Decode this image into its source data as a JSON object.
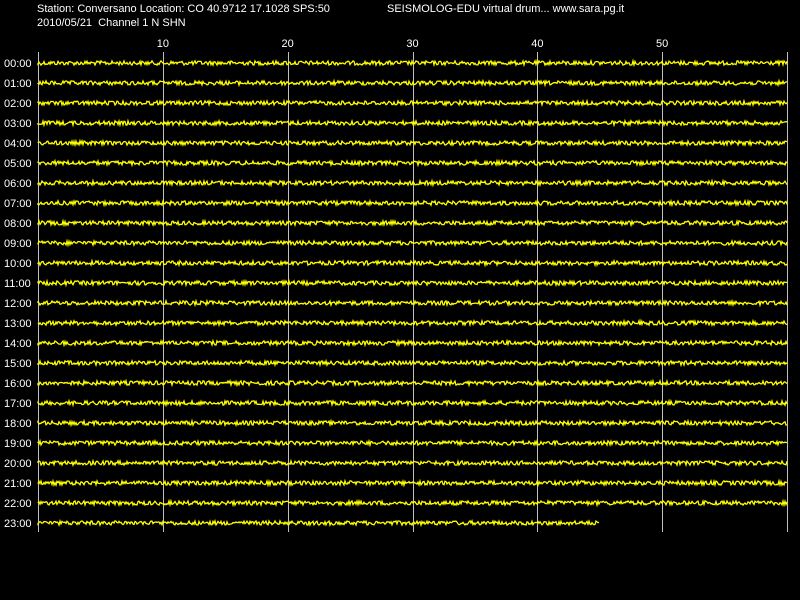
{
  "header": {
    "station_line": "Station: Conversano Location: CO 40.9712 17.1028 SPS:50",
    "title_line": "SEISMOLOG-EDU virtual drum... www.sara.pg.it",
    "date_line": "2010/05/21  Channel 1 N SHN"
  },
  "colors": {
    "background": "#000000",
    "trace": "#ffff00",
    "grid": "#c0c0c0",
    "text": "#ffffff"
  },
  "chart_data": {
    "type": "line",
    "title": "SEISMOLOG-EDU virtual drum... www.sara.pg.it",
    "xlabel": "",
    "ylabel": "",
    "xlim": [
      0,
      60
    ],
    "x_ticks": [
      10,
      20,
      30,
      40,
      50
    ],
    "grid": true,
    "rows": [
      "00:00",
      "01:00",
      "02:00",
      "03:00",
      "04:00",
      "05:00",
      "06:00",
      "07:00",
      "08:00",
      "09:00",
      "10:00",
      "11:00",
      "12:00",
      "13:00",
      "14:00",
      "15:00",
      "16:00",
      "17:00",
      "18:00",
      "19:00",
      "20:00",
      "21:00",
      "22:00",
      "23:00"
    ],
    "row_end_minute": [
      60,
      60,
      60,
      60,
      60,
      60,
      60,
      60,
      60,
      60,
      60,
      60,
      60,
      60,
      60,
      60,
      60,
      60,
      60,
      60,
      60,
      60,
      60,
      45
    ]
  }
}
